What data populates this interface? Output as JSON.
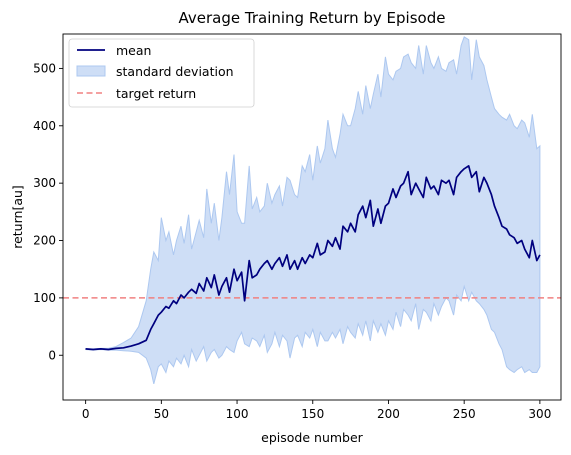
{
  "chart_data": {
    "type": "line",
    "title": "Average Training Return by Episode",
    "xlabel": "episode number",
    "ylabel": "return[au]",
    "xlim": [
      -14.95,
      313.95
    ],
    "ylim": [
      -78,
      560
    ],
    "xticks": [
      0,
      50,
      100,
      150,
      200,
      250,
      300
    ],
    "yticks": [
      0,
      100,
      200,
      300,
      400,
      500
    ],
    "grid": false,
    "legend": {
      "placement": "top-left",
      "entries": [
        "mean",
        "standard deviation",
        "target return"
      ]
    },
    "target_return": {
      "name": "target return",
      "value": 100,
      "color": "#f08080",
      "style": "dashed"
    },
    "band_color": "#adc8f0",
    "mean_color": "#00007f",
    "series": [
      {
        "name": "mean",
        "x": [
          0,
          5,
          10,
          15,
          20,
          25,
          30,
          35,
          40,
          43,
          45,
          48,
          50,
          53,
          55,
          58,
          60,
          63,
          65,
          68,
          70,
          73,
          75,
          78,
          80,
          83,
          85,
          88,
          90,
          93,
          95,
          98,
          100,
          103,
          105,
          108,
          110,
          113,
          115,
          118,
          120,
          123,
          125,
          128,
          130,
          133,
          135,
          138,
          140,
          143,
          145,
          148,
          150,
          153,
          155,
          158,
          160,
          163,
          165,
          168,
          170,
          173,
          175,
          178,
          180,
          183,
          185,
          188,
          190,
          193,
          195,
          198,
          200,
          203,
          205,
          208,
          210,
          213,
          215,
          218,
          220,
          223,
          225,
          228,
          230,
          233,
          235,
          238,
          240,
          243,
          245,
          248,
          250,
          253,
          255,
          258,
          260,
          263,
          265,
          268,
          270,
          273,
          275,
          278,
          280,
          283,
          285,
          288,
          290,
          293,
          295,
          298,
          300
        ],
        "values": [
          11,
          10,
          11,
          10,
          12,
          13,
          16,
          20,
          26,
          45,
          55,
          70,
          75,
          85,
          82,
          95,
          90,
          105,
          100,
          110,
          115,
          108,
          125,
          112,
          135,
          118,
          140,
          105,
          120,
          135,
          110,
          150,
          130,
          145,
          95,
          165,
          135,
          140,
          150,
          160,
          165,
          150,
          160,
          170,
          155,
          175,
          150,
          165,
          150,
          170,
          160,
          175,
          170,
          195,
          175,
          180,
          200,
          190,
          205,
          185,
          225,
          215,
          230,
          215,
          245,
          260,
          240,
          270,
          225,
          255,
          230,
          260,
          265,
          290,
          275,
          295,
          300,
          320,
          280,
          300,
          290,
          275,
          310,
          290,
          295,
          280,
          305,
          300,
          305,
          280,
          310,
          320,
          325,
          330,
          310,
          320,
          285,
          310,
          300,
          280,
          260,
          240,
          225,
          220,
          210,
          205,
          195,
          200,
          185,
          170,
          200,
          165,
          175
        ]
      },
      {
        "name": "standard deviation",
        "x": [
          0,
          5,
          10,
          15,
          20,
          25,
          30,
          35,
          40,
          43,
          45,
          48,
          50,
          53,
          55,
          58,
          60,
          63,
          65,
          68,
          70,
          73,
          75,
          78,
          80,
          83,
          85,
          88,
          90,
          93,
          95,
          98,
          100,
          103,
          105,
          108,
          110,
          113,
          115,
          118,
          120,
          123,
          125,
          128,
          130,
          133,
          135,
          138,
          140,
          143,
          145,
          148,
          150,
          153,
          155,
          158,
          160,
          163,
          165,
          168,
          170,
          173,
          175,
          178,
          180,
          183,
          185,
          188,
          190,
          193,
          195,
          198,
          200,
          203,
          205,
          208,
          210,
          213,
          215,
          218,
          220,
          223,
          225,
          228,
          230,
          233,
          235,
          238,
          240,
          243,
          245,
          248,
          250,
          253,
          255,
          258,
          260,
          263,
          265,
          268,
          270,
          273,
          275,
          278,
          280,
          283,
          285,
          288,
          290,
          293,
          295,
          298,
          300
        ],
        "upper": [
          11,
          11,
          12,
          12,
          15,
          22,
          30,
          50,
          95,
          150,
          180,
          165,
          240,
          200,
          215,
          175,
          200,
          225,
          195,
          245,
          185,
          215,
          235,
          205,
          290,
          230,
          265,
          200,
          240,
          320,
          280,
          350,
          250,
          230,
          230,
          330,
          255,
          275,
          250,
          260,
          300,
          265,
          280,
          295,
          260,
          310,
          305,
          280,
          275,
          330,
          320,
          350,
          305,
          365,
          335,
          360,
          410,
          360,
          345,
          385,
          420,
          400,
          400,
          430,
          460,
          420,
          470,
          430,
          455,
          490,
          450,
          520,
          490,
          480,
          495,
          500,
          520,
          525,
          510,
          500,
          540,
          490,
          540,
          510,
          500,
          520,
          500,
          495,
          510,
          515,
          490,
          540,
          555,
          550,
          480,
          550,
          520,
          505,
          480,
          450,
          430,
          420,
          415,
          410,
          420,
          400,
          395,
          410,
          405,
          380,
          420,
          360,
          365
        ],
        "lower": [
          10,
          9,
          10,
          9,
          9,
          8,
          7,
          5,
          -5,
          -25,
          -50,
          -20,
          -15,
          -30,
          -10,
          -20,
          -5,
          -15,
          0,
          -20,
          10,
          -10,
          0,
          15,
          -10,
          5,
          10,
          -5,
          0,
          15,
          10,
          5,
          25,
          40,
          20,
          15,
          30,
          25,
          15,
          35,
          5,
          20,
          40,
          15,
          35,
          25,
          -5,
          30,
          35,
          15,
          40,
          30,
          45,
          15,
          40,
          25,
          25,
          40,
          30,
          45,
          20,
          50,
          40,
          30,
          55,
          35,
          60,
          25,
          60,
          40,
          55,
          35,
          60,
          45,
          75,
          50,
          80,
          70,
          60,
          90,
          45,
          80,
          75,
          60,
          90,
          70,
          85,
          100,
          95,
          70,
          105,
          95,
          120,
          95,
          110,
          95,
          90,
          80,
          70,
          45,
          40,
          20,
          10,
          -20,
          -25,
          -30,
          -25,
          -20,
          -30,
          -25,
          -30,
          -30,
          -20
        ]
      }
    ]
  }
}
